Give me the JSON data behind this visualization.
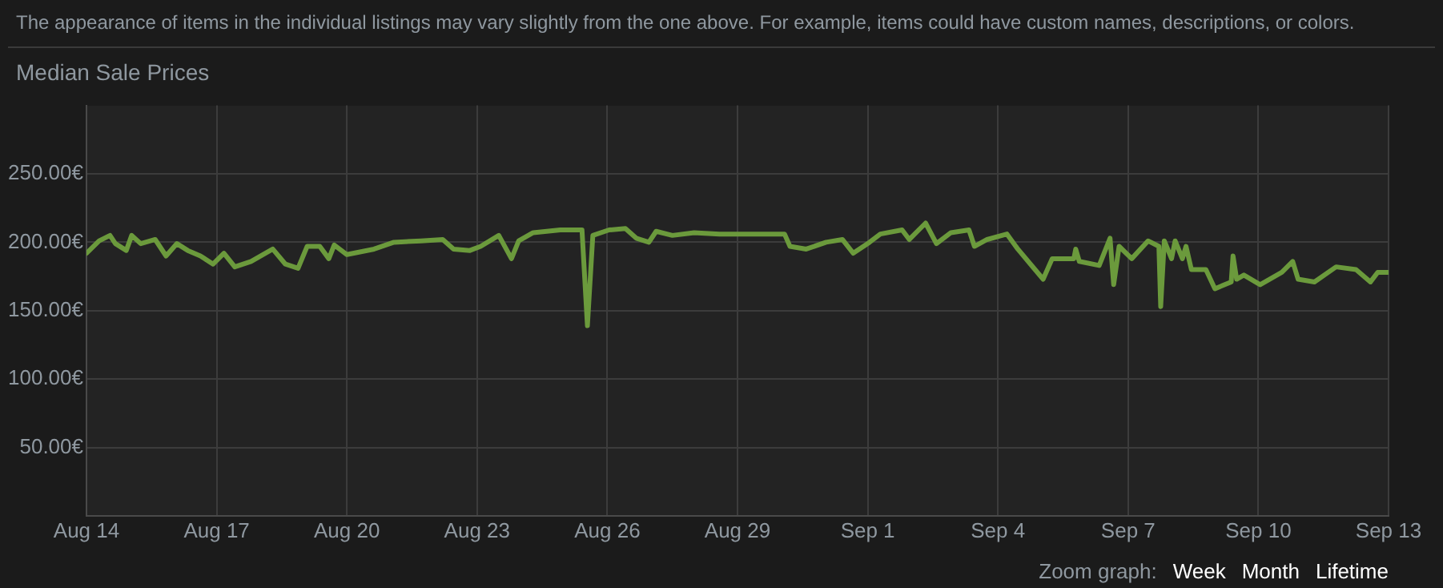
{
  "chart_data": {
    "type": "line",
    "title": "Median Sale Prices",
    "annotations": [
      "The appearance of items in the individual listings may vary slightly from the one above. For example, items could have custom names, descriptions, or colors.",
      "Zoom graph:",
      "Week",
      "Month",
      "Lifetime"
    ],
    "x": [
      "--08-14T00:00",
      "--08-14T07:00",
      "--08-14T13:00",
      "--08-14T16:00",
      "--08-14T22:00",
      "--08-15T01:00",
      "--08-15T06:00",
      "--08-15T14:00",
      "--08-15T20:00",
      "--08-16T02:00",
      "--08-16T08:00",
      "--08-16T15:00",
      "--08-16T22:00",
      "--08-17T04:00",
      "--08-17T10:00",
      "--08-17T19:00",
      "--08-18T07:00",
      "--08-18T14:00",
      "--08-18T21:00",
      "--08-19T02:00",
      "--08-19T09:00",
      "--08-19T14:00",
      "--08-19T17:00",
      "--08-20T00:00",
      "--08-20T15:00",
      "--08-21T02:00",
      "--08-21T17:00",
      "--08-22T05:00",
      "--08-22T11:00",
      "--08-22T20:00",
      "--08-23T02:00",
      "--08-23T12:00",
      "--08-23T19:00",
      "--08-23T23:00",
      "--08-24T07:00",
      "--08-24T22:00",
      "--08-25T10:00",
      "--08-25T13:00",
      "--08-25T16:00",
      "--08-26T01:00",
      "--08-26T10:00",
      "--08-26T16:00",
      "--08-26T23:00",
      "--08-27T03:00",
      "--08-27T12:00",
      "--08-28T00:00",
      "--08-28T14:00",
      "--08-29T00:00",
      "--08-30T02:00",
      "--08-30T05:00",
      "--08-30T14:00",
      "--08-31T01:00",
      "--08-31T10:00",
      "--08-31T16:00",
      "--09-01T01:00",
      "--09-01T07:00",
      "--09-01T19:00",
      "--09-01T23:00",
      "--09-02T08:00",
      "--09-02T14:00",
      "--09-02T22:00",
      "--09-03T08:00",
      "--09-03T11:00",
      "--09-03T18:00",
      "--09-04T05:00",
      "--09-04T11:00",
      "--09-04T18:00",
      "--09-05T01:00",
      "--09-05T06:00",
      "--09-05T18:00",
      "--09-05T19:00",
      "--09-05T21:00",
      "--09-06T08:00",
      "--09-06T14:00",
      "--09-06T16:00",
      "--09-06T19:00",
      "--09-07T02:00",
      "--09-07T11:00",
      "--09-07T17:00",
      "--09-07T18:00",
      "--09-07T20:00",
      "--09-08T00:00",
      "--09-08T02:00",
      "--09-08T06:00",
      "--09-08T08:00",
      "--09-08T11:00",
      "--09-08T19:00",
      "--09-09T00:00",
      "--09-09T09:00",
      "--09-09T10:00",
      "--09-09T12:00",
      "--09-09T16:00",
      "--09-10T01:00",
      "--09-10T13:00",
      "--09-10T19:00",
      "--09-10T22:00",
      "--09-11T07:00",
      "--09-11T19:00",
      "--09-12T06:00",
      "--09-12T14:00",
      "--09-12T18:00",
      "--09-13T00:00"
    ],
    "series": [
      {
        "color": "#6b9a3c",
        "values": [
          192,
          201,
          205,
          199,
          194,
          205,
          199,
          202,
          190,
          199,
          194,
          190,
          184,
          192,
          182,
          186,
          195,
          184,
          181,
          197,
          197,
          188,
          198,
          191,
          195,
          200,
          201,
          202,
          195,
          194,
          197,
          205,
          188,
          201,
          207,
          209,
          209,
          139,
          205,
          209,
          210,
          203,
          200,
          208,
          205,
          207,
          206,
          206,
          206,
          197,
          195,
          200,
          202,
          192,
          200,
          206,
          209,
          202,
          214,
          199,
          207,
          209,
          197,
          202,
          206,
          195,
          184,
          173,
          188,
          188,
          195,
          186,
          183,
          203,
          169,
          197,
          188,
          201,
          197,
          153,
          201,
          188,
          201,
          188,
          197,
          180,
          180,
          166,
          171,
          190,
          173,
          176,
          169,
          178,
          186,
          173,
          171,
          182,
          180,
          171,
          178,
          178
        ]
      }
    ],
    "xlim": [
      "--08-14",
      "--09-13"
    ],
    "xticks": [
      {
        "value": "--08-14",
        "label": "Aug 14"
      },
      {
        "value": "--08-17",
        "label": "Aug 17"
      },
      {
        "value": "--08-20",
        "label": "Aug 20"
      },
      {
        "value": "--08-23",
        "label": "Aug 23"
      },
      {
        "value": "--08-26",
        "label": "Aug 26"
      },
      {
        "value": "--08-29",
        "label": "Aug 29"
      },
      {
        "value": "--09-01",
        "label": "Sep 1"
      },
      {
        "value": "--09-04",
        "label": "Sep 4"
      },
      {
        "value": "--09-07",
        "label": "Sep 7"
      },
      {
        "value": "--09-10",
        "label": "Sep 10"
      },
      {
        "value": "--09-13",
        "label": "Sep 13"
      }
    ],
    "ylim": [
      0,
      300
    ],
    "yticks": [
      {
        "value": 50,
        "label": "50.00€"
      },
      {
        "value": 100,
        "label": "100.00€"
      },
      {
        "value": 150,
        "label": "150.00€"
      },
      {
        "value": 200,
        "label": "200.00€"
      },
      {
        "value": 250,
        "label": "250.00€"
      }
    ],
    "grid": true,
    "legend": false,
    "marker": "none",
    "line_style": "solid"
  }
}
